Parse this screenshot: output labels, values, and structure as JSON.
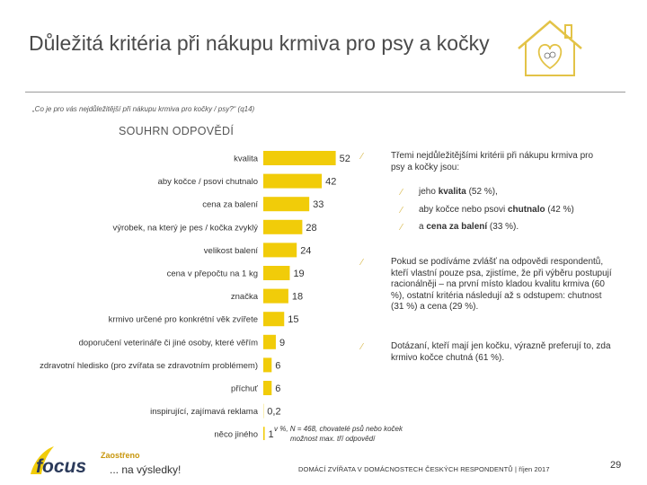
{
  "slide": {
    "title": "Důležitá kritéria při nákupu krmiva pro psy a kočky",
    "question": "„Co je pro vás nejdůležitější při nákupu krmiva pro kočky / psy?“ (q14)",
    "summary_label": "SOUHRN ODPOVĚDÍ",
    "footnote_line1": "v %, N = 468, chovatelé psů nebo koček",
    "footnote_line2": "možnost max. tří odpovědí",
    "footer_text": "DOMÁCÍ ZVÍŘATA V DOMÁCNOSTECH ČESKÝCH RESPONDENTŮ | říjen 2017",
    "page_number": "29",
    "logo_text": "focus",
    "tagline_top": "Zaostřeno",
    "tagline_bottom": "... na výsledky!"
  },
  "commentary": {
    "intro": "Třemi nejdůležitějšími kritérii při nákupu krmiva pro psy a kočky jsou:",
    "sub_items": [
      {
        "pre": "jeho ",
        "bold": "kvalita",
        "post": " (52 %),"
      },
      {
        "pre": "aby kočce nebo psovi ",
        "bold": "chutnalo",
        "post": " (42 %)"
      },
      {
        "pre": "a ",
        "bold": "cena za balení",
        "post": " (33 %)."
      }
    ],
    "paragraph2": "Pokud se podíváme zvlášť na odpovědi respondentů, kteří vlastní pouze psa, zjistíme, že při výběru postupují racionálněji – na první místo kladou kvalitu krmiva (60 %), ostatní kritéria následují až s odstupem: chutnost (31 %) a cena (29 %).",
    "paragraph3": "Dotázaní, kteří mají jen kočku, výrazně preferují to, zda krmivo kočce chutná (61 %)."
  },
  "colors": {
    "bar": "#f1cc09",
    "accent": "#d8b84a",
    "text": "#333333"
  },
  "chart_data": {
    "type": "bar",
    "orientation": "horizontal",
    "title": "SOUHRN ODPOVĚDÍ",
    "unit": "%",
    "categories": [
      "kvalita",
      "aby kočce / psovi chutnalo",
      "cena za balení",
      "výrobek, na který je pes / kočka zvyklý",
      "velikost balení",
      "cena v přepočtu na 1 kg",
      "značka",
      "krmivo určené pro konkrétní věk zvířete",
      "doporučení veterináře či jiné osoby, které věřím",
      "zdravotní hledisko (pro zvířata se zdravotním problémem)",
      "příchuť",
      "inspirující, zajímavá reklama",
      "něco jiného"
    ],
    "values": [
      52,
      42,
      33,
      28,
      24,
      19,
      18,
      15,
      9,
      6,
      6,
      0.2,
      1
    ],
    "value_labels": [
      "52",
      "42",
      "33",
      "28",
      "24",
      "19",
      "18",
      "15",
      "9",
      "6",
      "6",
      "0,2",
      "1"
    ],
    "xlim": [
      0,
      100
    ],
    "grid": false,
    "legend": "none"
  }
}
